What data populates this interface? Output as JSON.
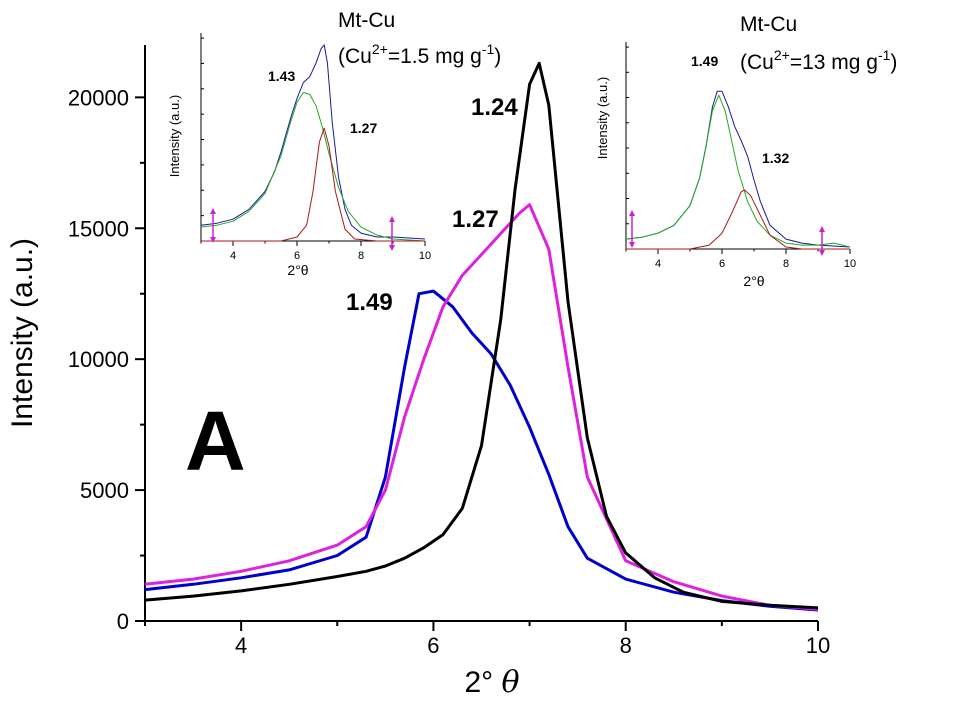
{
  "chart_data": [
    {
      "type": "line",
      "panel_label": "A",
      "xlabel": "2° θ",
      "ylabel": "Intensity (a.u.)",
      "xlim": [
        3,
        10
      ],
      "ylim": [
        0,
        22000
      ],
      "x_ticks": [
        4,
        6,
        8,
        10
      ],
      "y_ticks": [
        0,
        5000,
        10000,
        15000,
        20000
      ],
      "grid": false,
      "series": [
        {
          "color": "#0000cc",
          "peak_label": "1.49",
          "x": [
            3.0,
            3.5,
            4.0,
            4.5,
            5.0,
            5.3,
            5.5,
            5.7,
            5.85,
            6.0,
            6.2,
            6.4,
            6.6,
            6.8,
            7.0,
            7.2,
            7.4,
            7.6,
            8.0,
            8.5,
            9.0,
            9.5,
            10.0
          ],
          "y": [
            1200,
            1400,
            1650,
            1950,
            2500,
            3200,
            5500,
            9700,
            12500,
            12600,
            12000,
            11000,
            10200,
            9000,
            7400,
            5600,
            3600,
            2400,
            1600,
            1100,
            780,
            560,
            420
          ]
        },
        {
          "color": "#dd22dd",
          "peak_label": "1.27",
          "x": [
            3.0,
            3.5,
            4.0,
            4.5,
            5.0,
            5.3,
            5.5,
            5.7,
            5.9,
            6.1,
            6.3,
            6.5,
            6.7,
            6.9,
            7.0,
            7.2,
            7.4,
            7.6,
            8.0,
            8.5,
            9.0,
            9.5,
            10.0
          ],
          "y": [
            1400,
            1600,
            1900,
            2300,
            2900,
            3600,
            5000,
            7800,
            10000,
            12000,
            13200,
            14000,
            14800,
            15600,
            15900,
            14200,
            9700,
            5500,
            2300,
            1500,
            950,
            600,
            450
          ]
        },
        {
          "color": "#000000",
          "peak_label": "1.24",
          "x": [
            3.0,
            3.5,
            4.0,
            4.5,
            5.0,
            5.3,
            5.5,
            5.7,
            5.9,
            6.1,
            6.3,
            6.5,
            6.7,
            6.85,
            7.0,
            7.1,
            7.2,
            7.4,
            7.6,
            7.8,
            8.0,
            8.3,
            8.6,
            9.0,
            9.5,
            10.0
          ],
          "y": [
            800,
            950,
            1150,
            1400,
            1700,
            1900,
            2100,
            2400,
            2800,
            3300,
            4300,
            6700,
            11500,
            16500,
            20500,
            21300,
            19700,
            12200,
            7000,
            4000,
            2600,
            1650,
            1100,
            750,
            600,
            500
          ]
        }
      ]
    },
    {
      "type": "line",
      "title_line1": "Mt-Cu",
      "title_line2_prefix": "(Cu",
      "title_line2_sup": "2+",
      "title_line2_mid": "=1.5 mg g",
      "title_line2_sup2": "-1",
      "title_line2_suffix": ")",
      "xlabel": "2°θ",
      "ylabel": "Intensity (a.u.)",
      "xlim": [
        3,
        10
      ],
      "ylim": [
        0,
        1.05
      ],
      "x_ticks": [
        4,
        6,
        8,
        10
      ],
      "peak_labels": [
        "1.43",
        "1.27"
      ],
      "series": [
        {
          "color": "#1a1a99",
          "x": [
            3.0,
            3.5,
            4.0,
            4.5,
            5.0,
            5.3,
            5.5,
            5.8,
            6.0,
            6.2,
            6.4,
            6.6,
            6.75,
            6.85,
            6.95,
            7.1,
            7.3,
            7.5,
            7.7,
            8.0,
            8.5,
            9.0,
            10.0
          ],
          "y": [
            0.08,
            0.09,
            0.11,
            0.16,
            0.25,
            0.35,
            0.45,
            0.62,
            0.72,
            0.8,
            0.83,
            0.9,
            0.97,
            0.99,
            0.9,
            0.6,
            0.32,
            0.16,
            0.08,
            0.04,
            0.02,
            0.02,
            0.01
          ]
        },
        {
          "color": "#22aa22",
          "x": [
            3.0,
            3.5,
            4.0,
            4.5,
            5.0,
            5.5,
            5.8,
            6.0,
            6.2,
            6.4,
            6.6,
            6.8,
            7.0,
            7.3,
            7.6,
            8.0,
            8.5,
            9.0,
            10.0
          ],
          "y": [
            0.07,
            0.08,
            0.1,
            0.15,
            0.24,
            0.43,
            0.6,
            0.7,
            0.75,
            0.74,
            0.68,
            0.57,
            0.44,
            0.27,
            0.15,
            0.07,
            0.03,
            0.01,
            0.0
          ]
        },
        {
          "color": "#aa1a1a",
          "x": [
            3.0,
            5.5,
            6.0,
            6.3,
            6.5,
            6.7,
            6.85,
            7.0,
            7.2,
            7.5,
            7.8,
            8.5,
            10.0
          ],
          "y": [
            0.0,
            0.0,
            0.02,
            0.08,
            0.25,
            0.5,
            0.57,
            0.48,
            0.25,
            0.06,
            0.01,
            0.0,
            0.0
          ]
        }
      ]
    },
    {
      "type": "line",
      "title_line1": "Mt-Cu",
      "title_line2_prefix": "(Cu",
      "title_line2_sup": "2+",
      "title_line2_mid": "=13 mg g",
      "title_line2_sup2": "-1",
      "title_line2_suffix": ")",
      "xlabel": "2°θ",
      "ylabel": "Intensity (a.u.)",
      "xlim": [
        3,
        10
      ],
      "ylim": [
        0,
        1.05
      ],
      "x_ticks": [
        4,
        6,
        8,
        10
      ],
      "peak_labels": [
        "1.49",
        "1.32"
      ],
      "series": [
        {
          "color": "#1a1a99",
          "x": [
            3.0,
            3.5,
            4.0,
            4.5,
            5.0,
            5.3,
            5.5,
            5.7,
            5.85,
            6.0,
            6.2,
            6.4,
            6.6,
            6.8,
            7.0,
            7.2,
            7.5,
            8.0,
            8.5,
            9.0,
            10.0
          ],
          "y": [
            0.05,
            0.06,
            0.08,
            0.12,
            0.22,
            0.36,
            0.52,
            0.72,
            0.8,
            0.8,
            0.72,
            0.62,
            0.55,
            0.47,
            0.35,
            0.24,
            0.12,
            0.05,
            0.03,
            0.02,
            0.01
          ]
        },
        {
          "color": "#22aa22",
          "x": [
            3.0,
            3.5,
            4.0,
            4.5,
            5.0,
            5.3,
            5.5,
            5.7,
            5.9,
            6.1,
            6.3,
            6.5,
            6.8,
            7.1,
            7.5,
            8.0,
            8.5,
            9.0,
            9.5,
            10.0
          ],
          "y": [
            0.05,
            0.06,
            0.08,
            0.12,
            0.22,
            0.36,
            0.52,
            0.7,
            0.78,
            0.7,
            0.55,
            0.4,
            0.24,
            0.14,
            0.07,
            0.03,
            0.02,
            0.02,
            0.03,
            0.01
          ]
        },
        {
          "color": "#aa1a1a",
          "x": [
            3.0,
            5.0,
            5.6,
            6.0,
            6.3,
            6.6,
            6.7,
            6.9,
            7.2,
            7.5,
            8.0,
            8.5,
            10.0
          ],
          "y": [
            0.0,
            0.0,
            0.02,
            0.08,
            0.18,
            0.29,
            0.3,
            0.27,
            0.17,
            0.07,
            0.01,
            0.0,
            0.0
          ]
        }
      ]
    }
  ]
}
